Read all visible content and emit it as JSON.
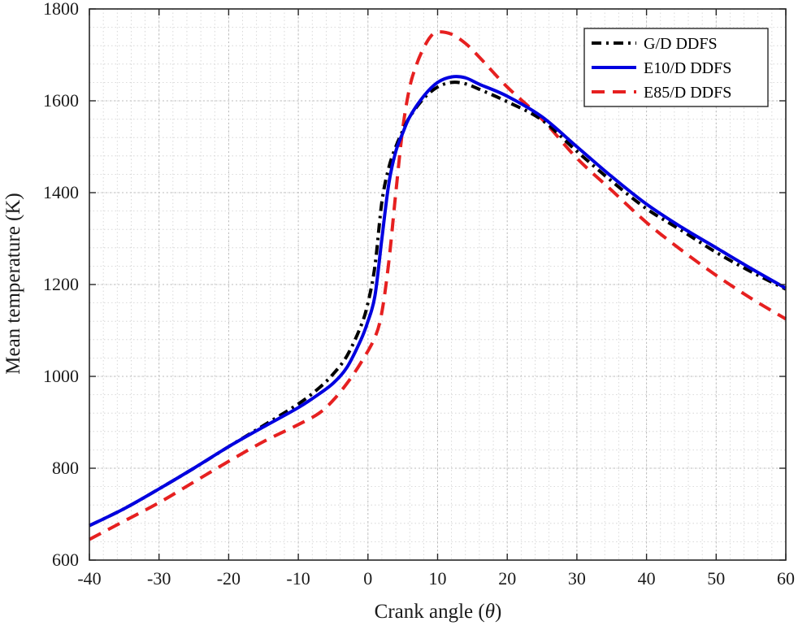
{
  "chart_data": {
    "type": "line",
    "title": "",
    "xlabel": "Crank angle (",
    "xlabel_symbol": "θ",
    "xlabel_suffix": ")",
    "ylabel": "Mean temperature (K)",
    "xlim": [
      -40,
      60
    ],
    "ylim": [
      600,
      1800
    ],
    "xticks": [
      -40,
      -30,
      -20,
      -10,
      0,
      10,
      20,
      30,
      40,
      50,
      60
    ],
    "yticks": [
      600,
      800,
      1000,
      1200,
      1400,
      1600,
      1800
    ],
    "grid": true,
    "legend_position": "top-right",
    "series": [
      {
        "name": "G/D DDFS",
        "color": "#000000",
        "style": "dash-dot",
        "points": [
          [
            -40,
            675
          ],
          [
            -35,
            712
          ],
          [
            -30,
            755
          ],
          [
            -25,
            800
          ],
          [
            -20,
            847
          ],
          [
            -15,
            893
          ],
          [
            -10,
            940
          ],
          [
            -7,
            975
          ],
          [
            -5,
            1005
          ],
          [
            -3,
            1045
          ],
          [
            -1,
            1110
          ],
          [
            0,
            1160
          ],
          [
            1,
            1240
          ],
          [
            2,
            1380
          ],
          [
            3,
            1455
          ],
          [
            4,
            1500
          ],
          [
            5,
            1535
          ],
          [
            6,
            1565
          ],
          [
            8,
            1605
          ],
          [
            10,
            1630
          ],
          [
            12,
            1640
          ],
          [
            14,
            1637
          ],
          [
            16,
            1625
          ],
          [
            20,
            1598
          ],
          [
            25,
            1558
          ],
          [
            30,
            1490
          ],
          [
            35,
            1425
          ],
          [
            40,
            1365
          ],
          [
            45,
            1318
          ],
          [
            50,
            1270
          ],
          [
            55,
            1228
          ],
          [
            60,
            1190
          ]
        ]
      },
      {
        "name": "E10/D DDFS",
        "color": "#0000e0",
        "style": "solid",
        "points": [
          [
            -40,
            675
          ],
          [
            -35,
            712
          ],
          [
            -30,
            755
          ],
          [
            -25,
            800
          ],
          [
            -20,
            847
          ],
          [
            -15,
            890
          ],
          [
            -10,
            932
          ],
          [
            -7,
            962
          ],
          [
            -5,
            985
          ],
          [
            -3,
            1020
          ],
          [
            -1,
            1080
          ],
          [
            0,
            1120
          ],
          [
            1,
            1175
          ],
          [
            2,
            1300
          ],
          [
            3,
            1420
          ],
          [
            4,
            1490
          ],
          [
            5,
            1530
          ],
          [
            6,
            1565
          ],
          [
            8,
            1610
          ],
          [
            10,
            1640
          ],
          [
            12,
            1652
          ],
          [
            14,
            1650
          ],
          [
            16,
            1636
          ],
          [
            20,
            1610
          ],
          [
            25,
            1565
          ],
          [
            30,
            1500
          ],
          [
            35,
            1435
          ],
          [
            40,
            1375
          ],
          [
            45,
            1325
          ],
          [
            50,
            1280
          ],
          [
            55,
            1235
          ],
          [
            60,
            1192
          ]
        ]
      },
      {
        "name": "E85/D DDFS",
        "color": "#e62020",
        "style": "dashed",
        "points": [
          [
            -40,
            645
          ],
          [
            -35,
            685
          ],
          [
            -30,
            725
          ],
          [
            -25,
            770
          ],
          [
            -20,
            815
          ],
          [
            -15,
            858
          ],
          [
            -10,
            895
          ],
          [
            -7,
            920
          ],
          [
            -5,
            948
          ],
          [
            -3,
            985
          ],
          [
            -1,
            1030
          ],
          [
            1,
            1085
          ],
          [
            2,
            1140
          ],
          [
            3,
            1250
          ],
          [
            4,
            1400
          ],
          [
            5,
            1540
          ],
          [
            6,
            1630
          ],
          [
            7,
            1680
          ],
          [
            8,
            1715
          ],
          [
            9,
            1740
          ],
          [
            10,
            1750
          ],
          [
            12,
            1745
          ],
          [
            14,
            1725
          ],
          [
            16,
            1695
          ],
          [
            20,
            1630
          ],
          [
            25,
            1560
          ],
          [
            30,
            1475
          ],
          [
            35,
            1405
          ],
          [
            40,
            1335
          ],
          [
            45,
            1275
          ],
          [
            50,
            1220
          ],
          [
            55,
            1170
          ],
          [
            60,
            1125
          ]
        ]
      }
    ]
  }
}
